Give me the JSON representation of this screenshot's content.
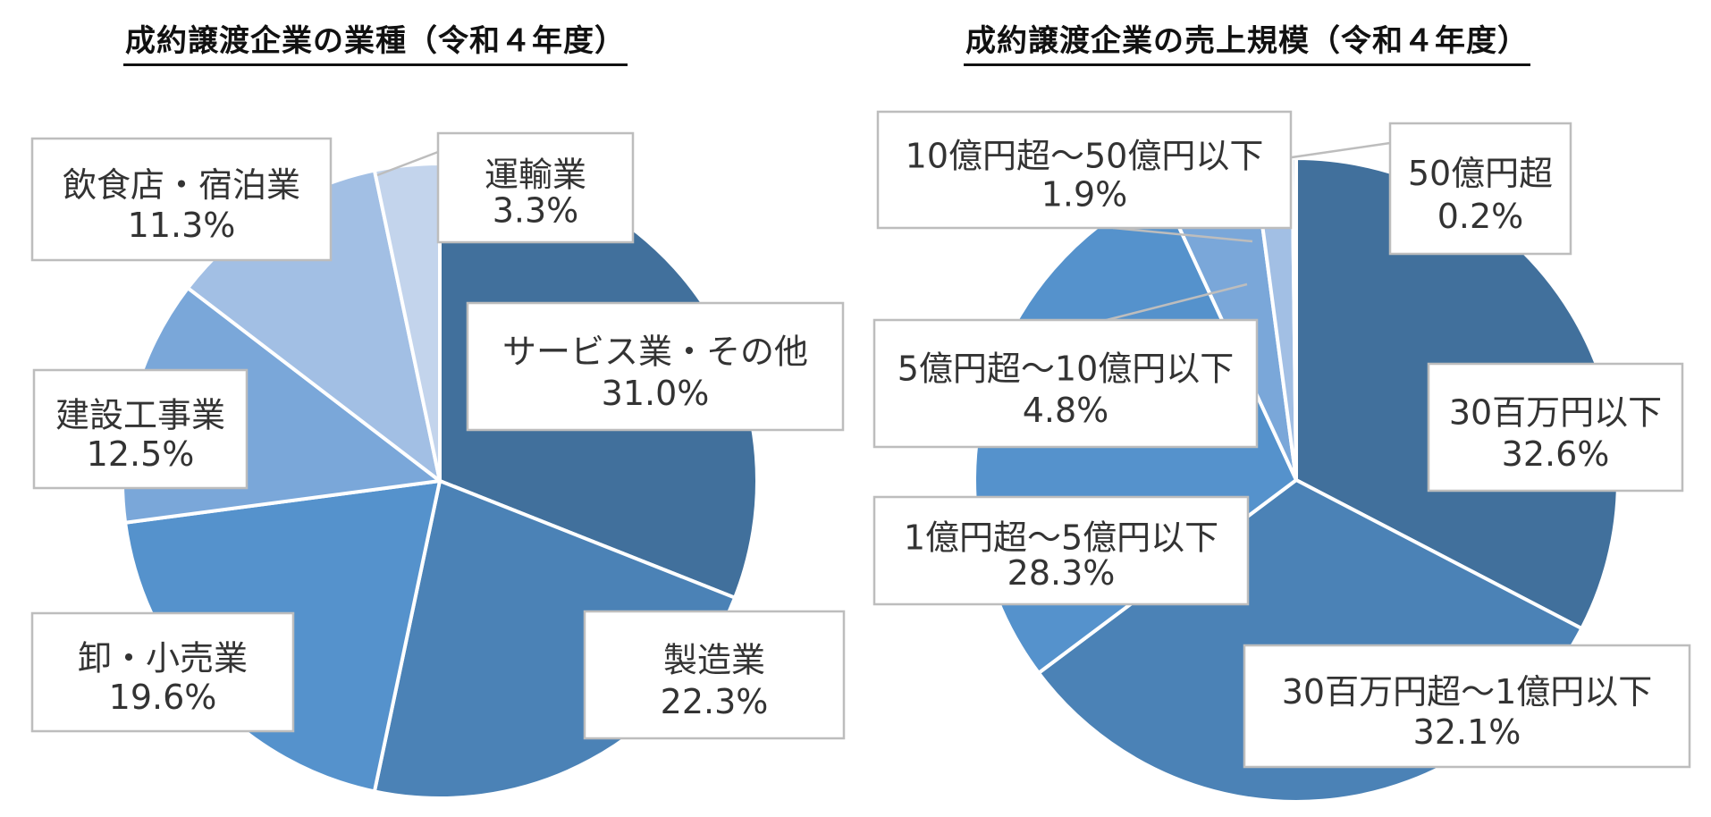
{
  "chart_data": [
    {
      "type": "pie",
      "title": "成約譲渡企業の業種（令和４年度）",
      "slices": [
        {
          "label": "サービス業・その他",
          "value": 31.0,
          "value_label": "31.0%",
          "color": "#41709c"
        },
        {
          "label": "製造業",
          "value": 22.3,
          "value_label": "22.3%",
          "color": "#4b82b6"
        },
        {
          "label": "卸・小売業",
          "value": 19.6,
          "value_label": "19.6%",
          "color": "#5592cc"
        },
        {
          "label": "建設工事業",
          "value": 12.5,
          "value_label": "12.5%",
          "color": "#7aa7d9"
        },
        {
          "label": "飲食店・宿泊業",
          "value": 11.3,
          "value_label": "11.3%",
          "color": "#a2bfe4"
        },
        {
          "label": "運輸業",
          "value": 3.3,
          "value_label": "3.3%",
          "color": "#c3d4ec"
        }
      ]
    },
    {
      "type": "pie",
      "title": "成約譲渡企業の売上規模（令和４年度）",
      "slices": [
        {
          "label": "30百万円以下",
          "value": 32.6,
          "value_label": "32.6%",
          "color": "#41709c"
        },
        {
          "label": "30百万円超～1億円以下",
          "value": 32.1,
          "value_label": "32.1%",
          "color": "#4b82b6"
        },
        {
          "label": "1億円超～5億円以下",
          "value": 28.3,
          "value_label": "28.3%",
          "color": "#5592cc"
        },
        {
          "label": "5億円超～10億円以下",
          "value": 4.8,
          "value_label": "4.8%",
          "color": "#7aa7d9"
        },
        {
          "label": "10億円超～50億円以下",
          "value": 1.9,
          "value_label": "1.9%",
          "color": "#a2bfe4"
        },
        {
          "label": "50億円超",
          "value": 0.2,
          "value_label": "0.2%",
          "color": "#c3d4ec"
        }
      ]
    }
  ]
}
